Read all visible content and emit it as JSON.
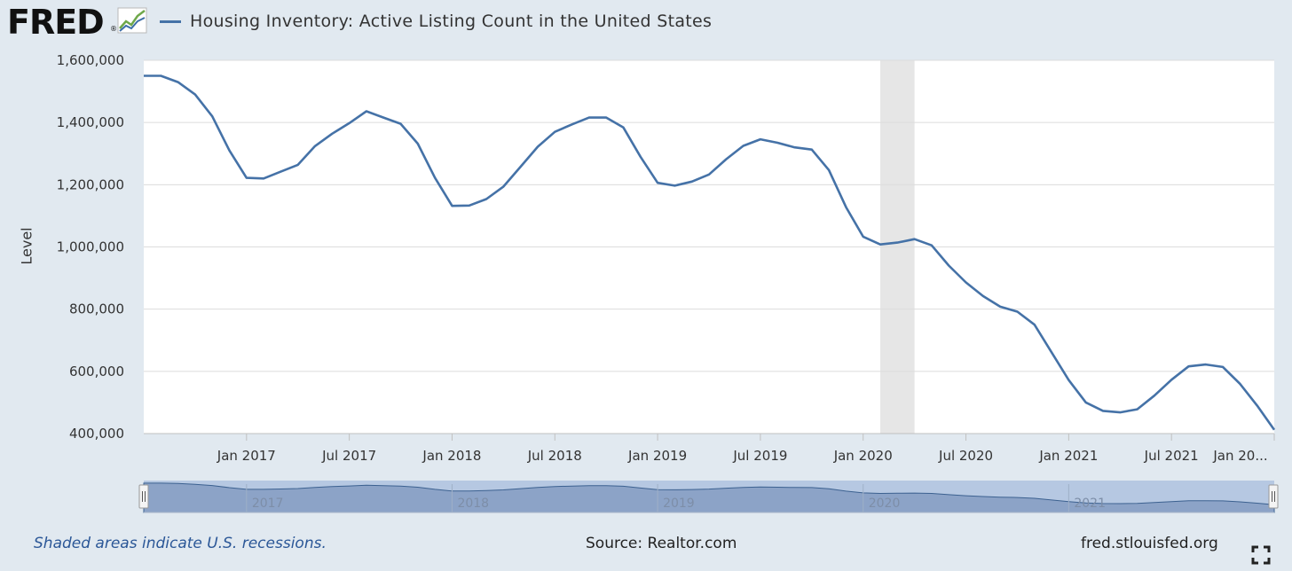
{
  "header": {
    "logo_text": "FRED",
    "logo_reg": "®",
    "legend_label": "Housing Inventory: Active Listing Count in the United States"
  },
  "colors": {
    "series": "#4572a7",
    "recession": "#e6e6e6",
    "background": "#e1e9f0",
    "navigator_fill": "#8ca3c7",
    "navigator_mask": "#b6c8e2"
  },
  "chart_data": {
    "type": "line",
    "ylabel": "Level",
    "ylim": [
      400000,
      1600000
    ],
    "yticks": [
      400000,
      600000,
      800000,
      1000000,
      1200000,
      1400000,
      1600000
    ],
    "ytick_labels": [
      "400,000",
      "600,000",
      "800,000",
      "1,000,000",
      "1,200,000",
      "1,400,000",
      "1,600,000"
    ],
    "xticks": [
      "Jan 2017",
      "Jul 2017",
      "Jan 2018",
      "Jul 2018",
      "Jan 2019",
      "Jul 2019",
      "Jan 2020",
      "Jul 2020",
      "Jan 2021",
      "Jul 2021",
      "Jan 20..."
    ],
    "xlim": [
      "2016-07",
      "2022-01"
    ],
    "grid": true,
    "recessions": [
      {
        "start": "2020-02",
        "end": "2020-04"
      }
    ],
    "series": [
      {
        "name": "Housing Inventory: Active Listing Count in the United States",
        "x": [
          "2016-07",
          "2016-08",
          "2016-09",
          "2016-10",
          "2016-11",
          "2016-12",
          "2017-01",
          "2017-02",
          "2017-03",
          "2017-04",
          "2017-05",
          "2017-06",
          "2017-07",
          "2017-08",
          "2017-09",
          "2017-10",
          "2017-11",
          "2017-12",
          "2018-01",
          "2018-02",
          "2018-03",
          "2018-04",
          "2018-05",
          "2018-06",
          "2018-07",
          "2018-08",
          "2018-09",
          "2018-10",
          "2018-11",
          "2018-12",
          "2019-01",
          "2019-02",
          "2019-03",
          "2019-04",
          "2019-05",
          "2019-06",
          "2019-07",
          "2019-08",
          "2019-09",
          "2019-10",
          "2019-11",
          "2019-12",
          "2020-01",
          "2020-02",
          "2020-03",
          "2020-04",
          "2020-05",
          "2020-06",
          "2020-07",
          "2020-08",
          "2020-09",
          "2020-10",
          "2020-11",
          "2020-12",
          "2021-01",
          "2021-02",
          "2021-03",
          "2021-04",
          "2021-05",
          "2021-06",
          "2021-07",
          "2021-08",
          "2021-09",
          "2021-10",
          "2021-11",
          "2021-12",
          "2022-01"
        ],
        "values": [
          1550000,
          1550000,
          1530000,
          1490000,
          1420000,
          1310000,
          1222000,
          1220000,
          1242000,
          1264000,
          1324000,
          1364000,
          1398000,
          1436000,
          1416000,
          1396000,
          1332000,
          1222000,
          1132000,
          1133000,
          1154000,
          1194000,
          1258000,
          1322000,
          1370000,
          1394000,
          1416000,
          1416000,
          1384000,
          1290000,
          1206000,
          1197000,
          1210000,
          1233000,
          1282000,
          1325000,
          1346000,
          1335000,
          1320000,
          1313000,
          1247000,
          1128000,
          1033000,
          1008000,
          1014000,
          1025000,
          1005000,
          940000,
          886000,
          842000,
          808000,
          792000,
          750000,
          661000,
          572000,
          500000,
          473000,
          468000,
          478000,
          522000,
          573000,
          616000,
          622000,
          614000,
          560000,
          490000,
          412000
        ]
      }
    ]
  },
  "navigator": {
    "year_labels": [
      "2017",
      "2018",
      "2019",
      "2020",
      "2021"
    ]
  },
  "footer": {
    "recession_note": "Shaded areas indicate U.S. recessions.",
    "source": "Source: Realtor.com",
    "site": "fred.stlouisfed.org"
  }
}
